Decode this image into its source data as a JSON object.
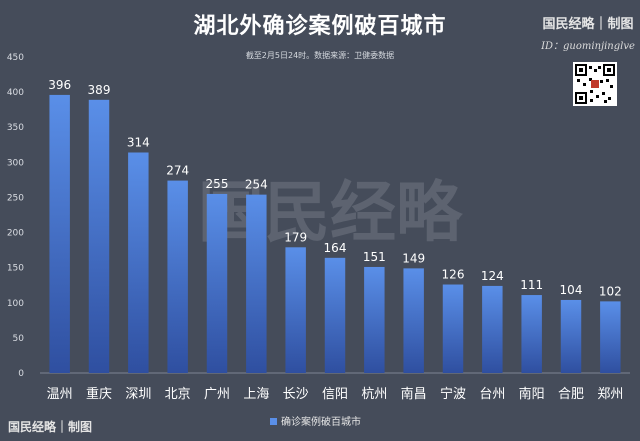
{
  "header": {
    "title": "湖北外确诊案例破百城市",
    "subtitle": "截至2月5日24时。数据来源：卫健委数据",
    "brand": "国民经略｜制图",
    "brand_id": "ID：guominjinglve",
    "footer_brand": "国民经略｜制图",
    "watermark": "国民经略"
  },
  "colors": {
    "background": "#454c5a",
    "bar_top": "#5a8fe8",
    "bar_bottom": "#2f4fa0"
  },
  "icons": {
    "qr": "qr-code-icon"
  },
  "chart_data": {
    "type": "bar",
    "categories": [
      "温州",
      "重庆",
      "深圳",
      "北京",
      "广州",
      "上海",
      "长沙",
      "信阳",
      "杭州",
      "南昌",
      "宁波",
      "台州",
      "南阳",
      "合肥",
      "郑州"
    ],
    "series": [
      {
        "name": "确诊案例破百城市",
        "values": [
          396,
          389,
          314,
          274,
          255,
          254,
          179,
          164,
          151,
          149,
          126,
          124,
          111,
          104,
          102
        ]
      }
    ],
    "title": "湖北外确诊案例破百城市",
    "xlabel": "",
    "ylabel": "",
    "ylim": [
      0,
      450
    ],
    "yticks": [
      0,
      50,
      100,
      150,
      200,
      250,
      300,
      350,
      400,
      450
    ],
    "grid": false,
    "legend": "bottom",
    "data_labels": true
  }
}
